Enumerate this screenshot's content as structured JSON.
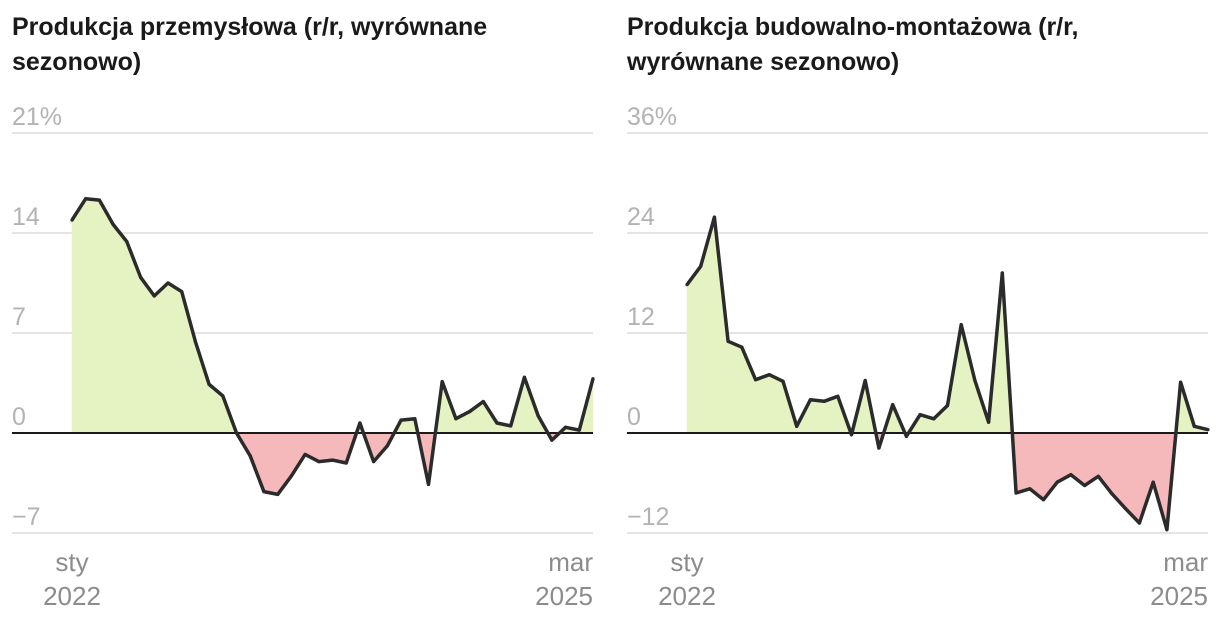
{
  "colors": {
    "line": "#2b2b2b",
    "positive_fill": "#e5f3c3",
    "negative_fill": "#f6b9bb",
    "grid": "#dcdcdc",
    "zero_line": "#1a1a1a",
    "tick_text": "#b3b3b3",
    "axis_text": "#8c8c8c"
  },
  "chart_data": [
    {
      "type": "area",
      "title": "Produkcja przemysłowa (r/r, wyrównane sezonowo)",
      "y_ticks": [
        {
          "value": 21,
          "label": "21%"
        },
        {
          "value": 14,
          "label": "14"
        },
        {
          "value": 7,
          "label": "7"
        },
        {
          "value": 0,
          "label": "0"
        },
        {
          "value": -7,
          "label": "−7"
        }
      ],
      "ylim": [
        -7,
        21
      ],
      "x_start_label": {
        "month": "sty",
        "year": "2022"
      },
      "x_end_label": {
        "month": "mar",
        "year": "2025"
      },
      "x_range": [
        "2022-01",
        "2025-03"
      ],
      "grid": true,
      "fill_mode": "sign",
      "series": [
        {
          "x": [
            "2022-01",
            "2022-02",
            "2022-03",
            "2022-04",
            "2022-05",
            "2022-06",
            "2022-07",
            "2022-08",
            "2022-09",
            "2022-10",
            "2022-11",
            "2022-12",
            "2023-01",
            "2023-02",
            "2023-03",
            "2023-04",
            "2023-05",
            "2023-06",
            "2023-07",
            "2023-08",
            "2023-09",
            "2023-10",
            "2023-11",
            "2023-12",
            "2024-01",
            "2024-02",
            "2024-03",
            "2024-04",
            "2024-05",
            "2024-06",
            "2024-07",
            "2024-08",
            "2024-09",
            "2024-10",
            "2024-11",
            "2024-12",
            "2025-01",
            "2025-02",
            "2025-03"
          ],
          "values": [
            14.9,
            16.4,
            16.3,
            14.6,
            13.4,
            10.9,
            9.6,
            10.5,
            9.9,
            6.4,
            3.4,
            2.6,
            0.0,
            -1.6,
            -4.1,
            -4.3,
            -3.0,
            -1.5,
            -2.0,
            -1.9,
            -2.1,
            0.7,
            -2.0,
            -0.9,
            0.9,
            1.0,
            -3.6,
            3.6,
            1.0,
            1.5,
            2.2,
            0.7,
            0.5,
            3.9,
            1.2,
            -0.5,
            0.4,
            0.2,
            3.8
          ]
        }
      ]
    },
    {
      "type": "area",
      "title": "Produkcja budowalno-montażowa (r/r, wyrównane sezonowo)",
      "y_ticks": [
        {
          "value": 36,
          "label": "36%"
        },
        {
          "value": 24,
          "label": "24"
        },
        {
          "value": 12,
          "label": "12"
        },
        {
          "value": 0,
          "label": "0"
        },
        {
          "value": -12,
          "label": "−12"
        }
      ],
      "ylim": [
        -12,
        36
      ],
      "x_start_label": {
        "month": "sty",
        "year": "2022"
      },
      "x_end_label": {
        "month": "mar",
        "year": "2025"
      },
      "x_range": [
        "2022-01",
        "2025-03"
      ],
      "grid": true,
      "fill_mode": "sign",
      "series": [
        {
          "x": [
            "2022-01",
            "2022-02",
            "2022-03",
            "2022-04",
            "2022-05",
            "2022-06",
            "2022-07",
            "2022-08",
            "2022-09",
            "2022-10",
            "2022-11",
            "2022-12",
            "2023-01",
            "2023-02",
            "2023-03",
            "2023-04",
            "2023-05",
            "2023-06",
            "2023-07",
            "2023-08",
            "2023-09",
            "2023-10",
            "2023-11",
            "2023-12",
            "2024-01",
            "2024-02",
            "2024-03",
            "2024-04",
            "2024-05",
            "2024-06",
            "2024-07",
            "2024-08",
            "2024-09",
            "2024-10",
            "2024-11",
            "2024-12",
            "2025-01",
            "2025-02",
            "2025-03"
          ],
          "values": [
            17.8,
            20.0,
            25.9,
            11.0,
            10.3,
            6.4,
            7.0,
            6.2,
            0.8,
            4.0,
            3.8,
            4.4,
            -0.2,
            6.3,
            -1.8,
            3.4,
            -0.4,
            2.2,
            1.7,
            3.3,
            13.0,
            6.3,
            1.3,
            19.2,
            -7.2,
            -6.7,
            -8.0,
            -5.9,
            -5.0,
            -6.3,
            -5.2,
            -7.3,
            -9.1,
            -10.8,
            -5.9,
            -11.6,
            6.1,
            0.8,
            0.4
          ]
        }
      ]
    }
  ]
}
